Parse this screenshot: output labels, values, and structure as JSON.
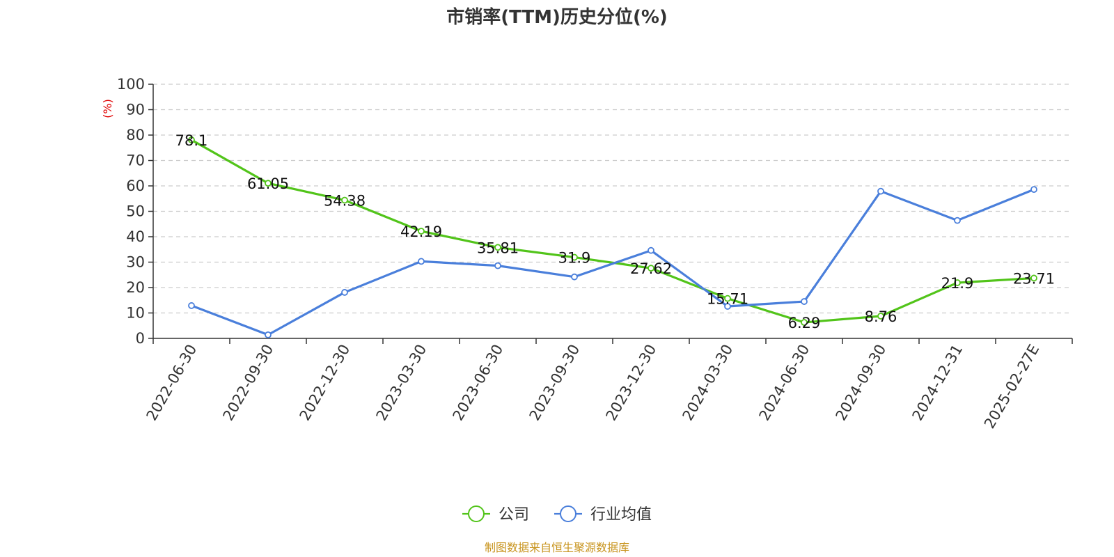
{
  "chart_data": {
    "type": "line",
    "title": "市销率(TTM)历史分位(%)",
    "yunit": "(%)",
    "categories": [
      "2022-06-30",
      "2022-09-30",
      "2022-12-30",
      "2023-03-30",
      "2023-06-30",
      "2023-09-30",
      "2023-12-30",
      "2024-03-30",
      "2024-06-30",
      "2024-09-30",
      "2024-12-31",
      "2025-02-27E"
    ],
    "ylim": [
      0,
      100
    ],
    "yticks": [
      0,
      10,
      20,
      30,
      40,
      50,
      60,
      70,
      80,
      90,
      100
    ],
    "grid": true,
    "legend_position": "bottom",
    "series": [
      {
        "name": "公司",
        "color": "#52c41a",
        "values": [
          78.1,
          61.05,
          54.38,
          42.19,
          35.81,
          31.9,
          27.62,
          15.71,
          6.29,
          8.76,
          21.9,
          23.71
        ],
        "labels": [
          "78.1",
          "61.05",
          "54.38",
          "42.19",
          "35.81",
          "31.9",
          "27.62",
          "15.71",
          "6.29",
          "8.76",
          "21.9",
          "23.71"
        ]
      },
      {
        "name": "行业均值",
        "color": "#4a7fdb",
        "values": [
          12.9,
          1.4,
          18.1,
          30.3,
          28.6,
          24.2,
          34.6,
          12.6,
          14.5,
          57.9,
          46.4,
          58.6
        ]
      }
    ],
    "source": "制图数据来自恒生聚源数据库"
  }
}
